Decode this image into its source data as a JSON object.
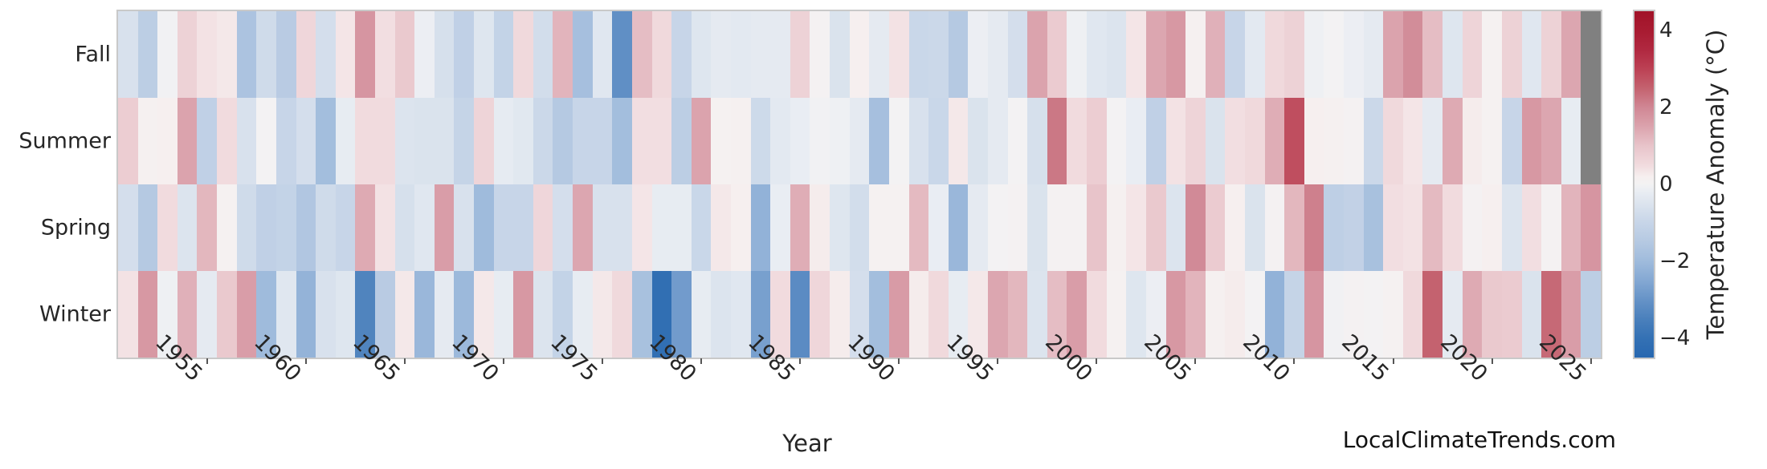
{
  "watermark": "LocalClimateTrends.com",
  "chart_data": {
    "type": "heatmap",
    "title": "",
    "xlabel": "Year",
    "ylabel": "",
    "colorbar_label": "Temperature Anomaly (°C)",
    "colorbar_tick_labels": [
      "4",
      "2",
      "0",
      "−2",
      "−4"
    ],
    "colorbar_tick_values": [
      4,
      2,
      0,
      -2,
      -4
    ],
    "vmin": -4.5,
    "vmax": 4.5,
    "grid": false,
    "legend_position": "right-colorbar",
    "missing_color": "#808080",
    "frame_color": "#c9c9c9",
    "years": [
      1951,
      1952,
      1953,
      1954,
      1955,
      1956,
      1957,
      1958,
      1959,
      1960,
      1961,
      1962,
      1963,
      1964,
      1965,
      1966,
      1967,
      1968,
      1969,
      1970,
      1971,
      1972,
      1973,
      1974,
      1975,
      1976,
      1977,
      1978,
      1979,
      1980,
      1981,
      1982,
      1983,
      1984,
      1985,
      1986,
      1987,
      1988,
      1989,
      1990,
      1991,
      1992,
      1993,
      1994,
      1995,
      1996,
      1997,
      1998,
      1999,
      2000,
      2001,
      2002,
      2003,
      2004,
      2005,
      2006,
      2007,
      2008,
      2009,
      2010,
      2011,
      2012,
      2013,
      2014,
      2015,
      2016,
      2017,
      2018,
      2019,
      2020,
      2021,
      2022,
      2023,
      2024,
      2025
    ],
    "xtick_years": [
      1955,
      1960,
      1965,
      1970,
      1975,
      1980,
      1985,
      1990,
      1995,
      2000,
      2005,
      2010,
      2015,
      2020,
      2025
    ],
    "categories_y": [
      "Fall",
      "Summer",
      "Spring",
      "Winter"
    ],
    "series": [
      {
        "name": "Fall",
        "values": [
          -0.6,
          -1.3,
          -0.05,
          0.7,
          0.4,
          0.3,
          -1.7,
          -0.8,
          -1.4,
          0.6,
          -0.7,
          0.35,
          1.75,
          0.45,
          0.9,
          -0.15,
          -0.65,
          -1.2,
          -0.45,
          -1.1,
          0.55,
          -0.75,
          1.25,
          -1.85,
          -0.4,
          -3.1,
          1.1,
          0.55,
          -1.0,
          -0.45,
          -0.3,
          -0.35,
          -0.3,
          -0.3,
          0.7,
          0.05,
          -0.55,
          0.2,
          -0.3,
          0.4,
          -0.95,
          -0.9,
          -1.5,
          -0.15,
          -0.3,
          -0.7,
          1.5,
          0.85,
          -0.1,
          -0.4,
          -0.5,
          0.35,
          1.45,
          1.7,
          0.15,
          1.3,
          -1.0,
          -0.35,
          0.55,
          0.7,
          -0.1,
          0.0,
          -0.15,
          -0.3,
          1.5,
          1.9,
          1.1,
          -0.45,
          0.65,
          0.1,
          0.7,
          -0.4,
          0.7,
          1.45,
          null
        ]
      },
      {
        "name": "Summer",
        "values": [
          0.8,
          0.15,
          0.2,
          1.5,
          -1.2,
          0.5,
          -0.6,
          0.0,
          -1.0,
          -0.7,
          -1.9,
          -0.25,
          0.5,
          0.5,
          -0.5,
          -0.55,
          -0.55,
          -1.05,
          0.65,
          -0.28,
          -0.38,
          -0.9,
          -1.5,
          -1.0,
          -1.0,
          -1.9,
          0.45,
          0.45,
          -1.3,
          1.5,
          0.1,
          0.15,
          -0.85,
          -0.35,
          -0.2,
          -0.05,
          -0.1,
          -0.3,
          -1.85,
          0.0,
          -0.6,
          -0.95,
          0.3,
          -0.55,
          -0.3,
          0.0,
          -0.65,
          2.2,
          0.5,
          0.8,
          0.0,
          -0.2,
          -1.2,
          0.4,
          0.65,
          -0.55,
          0.45,
          0.55,
          1.35,
          2.8,
          0.2,
          0.15,
          0.05,
          -0.9,
          0.55,
          0.35,
          -0.3,
          1.4,
          0.25,
          0.1,
          -1.0,
          1.7,
          1.45,
          -0.25,
          null
        ]
      },
      {
        "name": "Spring",
        "values": [
          -0.7,
          -1.5,
          0.5,
          -0.5,
          1.2,
          0.1,
          -0.8,
          -1.2,
          -1.1,
          -1.6,
          -0.8,
          -1.0,
          1.4,
          0.4,
          -0.65,
          -0.4,
          1.6,
          -0.6,
          -2.0,
          -1.0,
          -1.0,
          0.6,
          -0.7,
          1.45,
          -0.6,
          -0.6,
          0.35,
          -0.25,
          -0.25,
          -0.95,
          0.3,
          0.2,
          -2.25,
          -0.2,
          1.35,
          0.25,
          -0.45,
          -0.75,
          0.1,
          0.1,
          1.15,
          -0.2,
          -2.1,
          -0.3,
          0.0,
          0.05,
          -0.55,
          0.05,
          0.05,
          1.0,
          0.15,
          0.35,
          0.9,
          -0.5,
          1.95,
          0.85,
          0.2,
          -0.55,
          0.05,
          1.2,
          2.1,
          -1.25,
          -1.15,
          -1.8,
          0.45,
          0.4,
          1.15,
          0.5,
          0.05,
          0.2,
          -0.5,
          0.45,
          0.05,
          1.25,
          1.75
        ]
      },
      {
        "name": "Winter",
        "values": [
          0.4,
          1.7,
          -0.1,
          1.3,
          -0.3,
          0.9,
          1.6,
          -2.0,
          -0.4,
          -2.2,
          -0.6,
          -0.45,
          -3.4,
          -1.4,
          0.3,
          -2.1,
          -0.3,
          -2.05,
          0.3,
          -0.25,
          1.7,
          -0.5,
          -1.1,
          -0.25,
          0.3,
          0.55,
          -1.8,
          -4.1,
          -2.8,
          -0.25,
          -0.5,
          -0.4,
          -2.7,
          0.5,
          -3.2,
          0.6,
          0.25,
          -0.7,
          -1.9,
          1.65,
          0.25,
          0.55,
          -0.25,
          0.3,
          1.45,
          1.2,
          -0.5,
          1.1,
          1.6,
          0.5,
          0.1,
          -0.45,
          -0.15,
          1.7,
          1.25,
          0.15,
          0.25,
          0.0,
          -2.25,
          -1.05,
          1.75,
          -0.05,
          0.05,
          0.0,
          0.1,
          0.55,
          2.5,
          -0.3,
          1.4,
          0.9,
          0.85,
          -0.55,
          2.4,
          1.6,
          -1.3
        ]
      }
    ],
    "colormap": [
      [
        -4.5,
        "#2767b0"
      ],
      [
        -4.0,
        "#3471b4"
      ],
      [
        -3.5,
        "#4a80bc"
      ],
      [
        -3.0,
        "#6693c7"
      ],
      [
        -2.5,
        "#84a8d3"
      ],
      [
        -2.0,
        "#9fbbdc"
      ],
      [
        -1.5,
        "#b5c9e2"
      ],
      [
        -1.0,
        "#c7d5e8"
      ],
      [
        -0.5,
        "#dce4ee"
      ],
      [
        -0.2,
        "#e9edf3"
      ],
      [
        0.0,
        "#f3f2f3"
      ],
      [
        0.2,
        "#f6efef"
      ],
      [
        0.5,
        "#f1dbde"
      ],
      [
        1.0,
        "#e8c4ca"
      ],
      [
        1.5,
        "#dba3ad"
      ],
      [
        2.0,
        "#d08794"
      ],
      [
        2.5,
        "#c4626f"
      ],
      [
        3.0,
        "#bc4154"
      ],
      [
        3.5,
        "#b02840"
      ],
      [
        4.0,
        "#a81b31"
      ],
      [
        4.5,
        "#a11228"
      ]
    ]
  }
}
